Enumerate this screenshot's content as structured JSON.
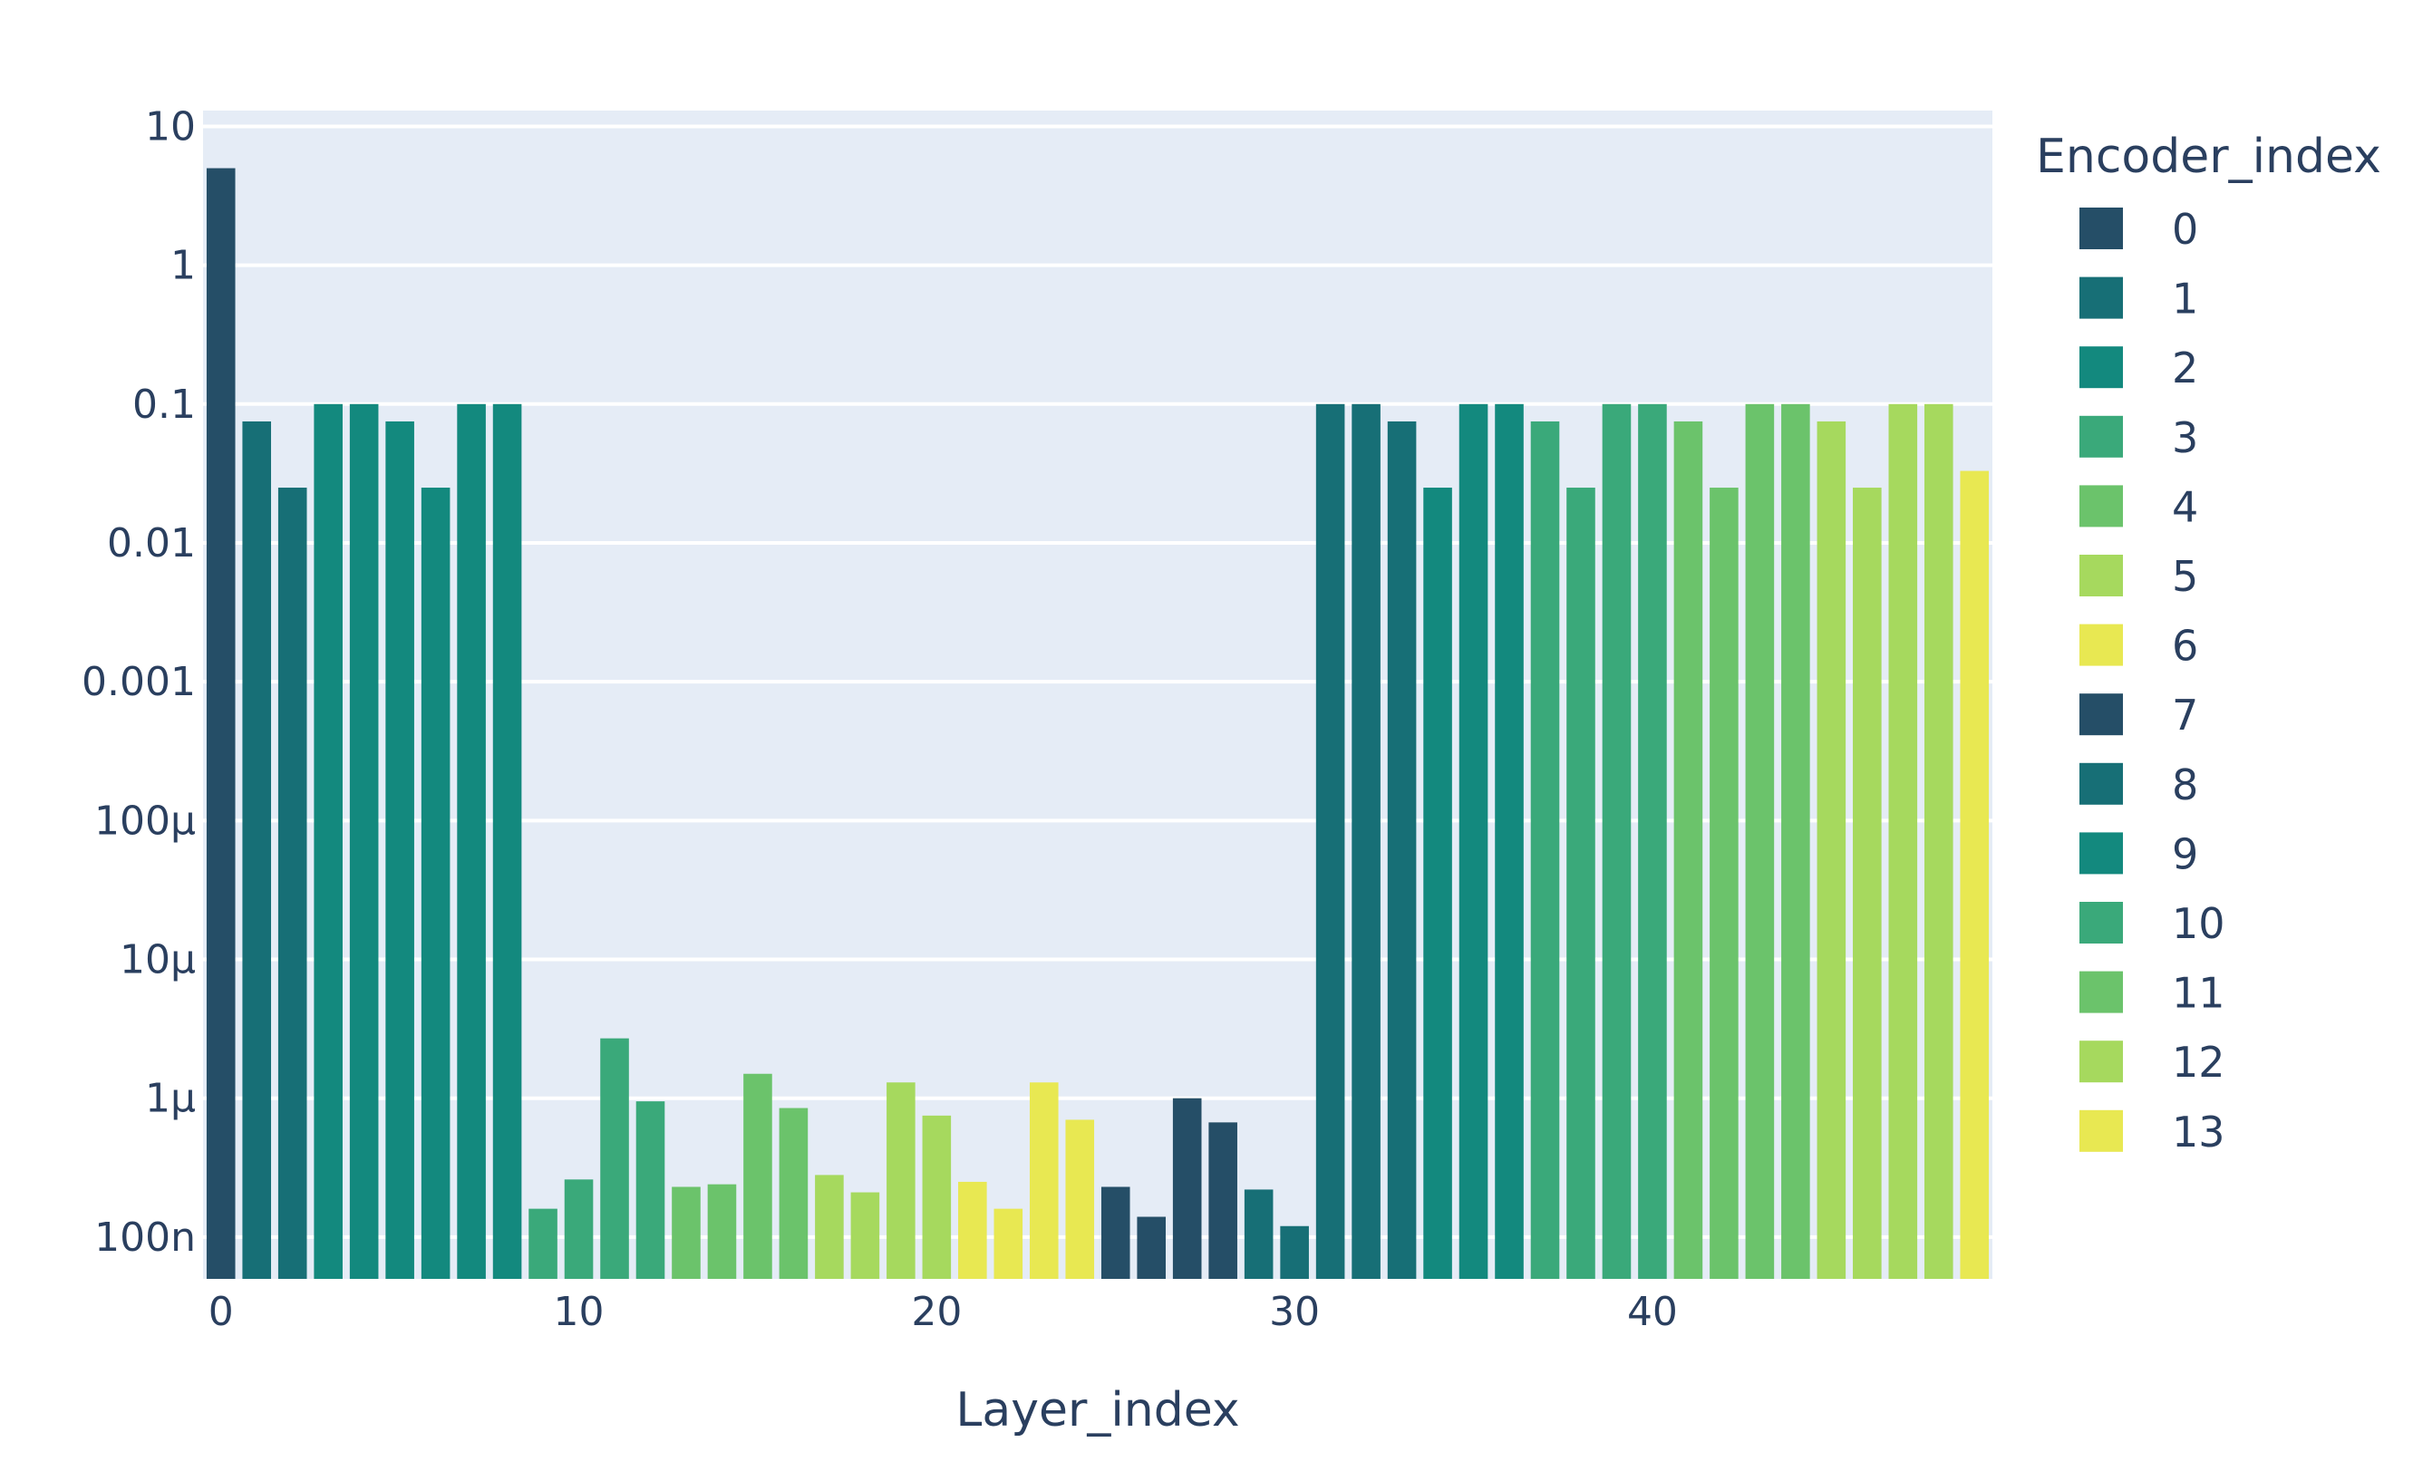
{
  "chart_data": {
    "type": "bar",
    "title": "",
    "xlabel": "Layer_index",
    "ylabel": "",
    "y_scale": "log",
    "grid": true,
    "legend": {
      "title": "Encoder_index",
      "placement": "right"
    },
    "xlim": [
      -0.5,
      49.5
    ],
    "ylim": [
      5e-08,
      13
    ],
    "x_ticks": [
      {
        "value": 0,
        "label": "0"
      },
      {
        "value": 10,
        "label": "10"
      },
      {
        "value": 20,
        "label": "20"
      },
      {
        "value": 30,
        "label": "30"
      },
      {
        "value": 40,
        "label": "40"
      }
    ],
    "y_ticks": [
      {
        "value": 10,
        "label": "10"
      },
      {
        "value": 1,
        "label": "1"
      },
      {
        "value": 0.1,
        "label": "0.1"
      },
      {
        "value": 0.01,
        "label": "0.01"
      },
      {
        "value": 0.001,
        "label": "0.001"
      },
      {
        "value": 0.0001,
        "label": "100µ"
      },
      {
        "value": 1e-05,
        "label": "10µ"
      },
      {
        "value": 1e-06,
        "label": "1µ"
      },
      {
        "value": 1e-07,
        "label": "100n"
      }
    ],
    "series": [
      {
        "name": "0",
        "color": "#254e67",
        "points": [
          [
            0,
            5
          ]
        ]
      },
      {
        "name": "1",
        "color": "#176f76",
        "points": [
          [
            1,
            0.075
          ],
          [
            2,
            0.025
          ]
        ]
      },
      {
        "name": "2",
        "color": "#13897e",
        "points": [
          [
            3,
            0.1
          ],
          [
            4,
            0.1
          ],
          [
            5,
            0.075
          ],
          [
            6,
            0.025
          ],
          [
            7,
            0.1
          ],
          [
            8,
            0.1
          ]
        ]
      },
      {
        "name": "3",
        "color": "#3aa97a",
        "points": [
          [
            9,
            1.6e-07
          ],
          [
            10,
            2.6e-07
          ],
          [
            11,
            2.7e-06
          ],
          [
            12,
            9.5e-07
          ]
        ]
      },
      {
        "name": "4",
        "color": "#6bc36b",
        "points": [
          [
            13,
            2.3e-07
          ],
          [
            14,
            2.4e-07
          ],
          [
            15,
            1.5e-06
          ],
          [
            16,
            8.5e-07
          ]
        ]
      },
      {
        "name": "5",
        "color": "#a6d95e",
        "points": [
          [
            17,
            2.8e-07
          ],
          [
            18,
            2.1e-07
          ],
          [
            19,
            1.3e-06
          ],
          [
            20,
            7.5e-07
          ]
        ]
      },
      {
        "name": "6",
        "color": "#e8e852",
        "points": [
          [
            21,
            2.5e-07
          ],
          [
            22,
            1.6e-07
          ],
          [
            23,
            1.3e-06
          ],
          [
            24,
            7e-07
          ]
        ]
      },
      {
        "name": "7",
        "color": "#254e67",
        "points": [
          [
            25,
            2.3e-07
          ],
          [
            26,
            1.4e-07
          ],
          [
            27,
            1e-06
          ],
          [
            28,
            6.7e-07
          ]
        ]
      },
      {
        "name": "8",
        "color": "#176f76",
        "points": [
          [
            29,
            2.2e-07
          ],
          [
            30,
            1.2e-07
          ],
          [
            31,
            0.1
          ],
          [
            32,
            0.1
          ],
          [
            33,
            0.075
          ]
        ]
      },
      {
        "name": "9",
        "color": "#13897e",
        "points": [
          [
            34,
            0.025
          ],
          [
            35,
            0.1
          ],
          [
            36,
            0.1
          ]
        ]
      },
      {
        "name": "10",
        "color": "#3aa97a",
        "points": [
          [
            37,
            0.075
          ],
          [
            38,
            0.025
          ],
          [
            39,
            0.1
          ],
          [
            40,
            0.1
          ]
        ]
      },
      {
        "name": "11",
        "color": "#6bc36b",
        "points": [
          [
            41,
            0.075
          ],
          [
            42,
            0.025
          ],
          [
            43,
            0.1
          ],
          [
            44,
            0.1
          ]
        ]
      },
      {
        "name": "12",
        "color": "#a6d95e",
        "points": [
          [
            45,
            0.075
          ],
          [
            46,
            0.025
          ],
          [
            47,
            0.1
          ],
          [
            48,
            0.1
          ]
        ]
      },
      {
        "name": "13",
        "color": "#e8e852",
        "points": [
          [
            49,
            0.033
          ]
        ]
      }
    ]
  }
}
